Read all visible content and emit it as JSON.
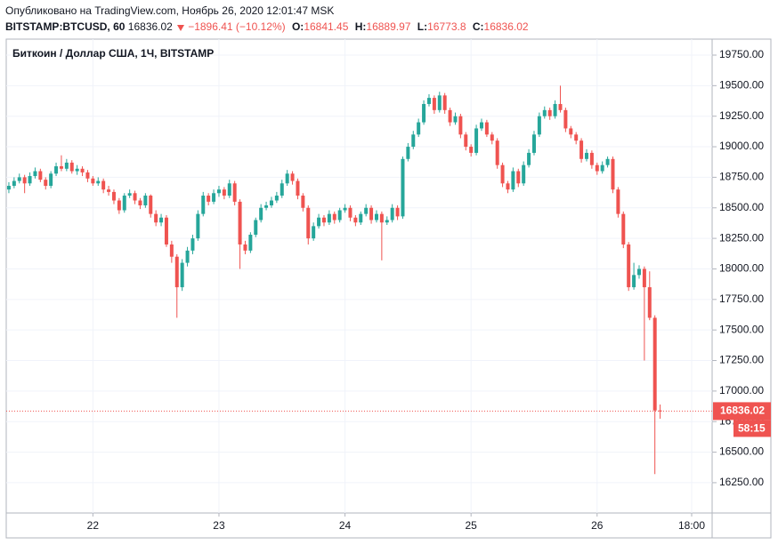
{
  "chart_data": {
    "type": "candlestick",
    "published": "Опубликовано на TradingView.com, Ноябрь 26, 2020 12:01:47 MSK",
    "symbol": "BITSTAMP:BTCUSD, 60",
    "change": "−1896.41 (−10.12%)",
    "ohlc_labels": [
      "O:",
      "H:",
      "L:",
      "C:"
    ],
    "title": "Биткоин / Доллар США, 1Ч, BITSTAMP",
    "countdown": "58:15",
    "up_color": "#26a69a",
    "down_color": "#ef5350",
    "grid": true,
    "xlim": [
      -0.5,
      133.9
    ],
    "xticks": [
      {
        "value": 16,
        "label": "22"
      },
      {
        "value": 40,
        "label": "23"
      },
      {
        "value": 64,
        "label": "24"
      },
      {
        "value": 88,
        "label": "25"
      },
      {
        "value": 112,
        "label": "26"
      },
      {
        "value": 130,
        "label": "18:00"
      }
    ],
    "ylim": [
      16002,
      19881
    ],
    "yticks": [
      {
        "value": 16250,
        "label": "16250.00"
      },
      {
        "value": 16500,
        "label": "16500.00"
      },
      {
        "value": 16750,
        "label": "16750.00"
      },
      {
        "value": 17000,
        "label": "17000.00"
      },
      {
        "value": 17250,
        "label": "17250.00"
      },
      {
        "value": 17500,
        "label": "17500.00"
      },
      {
        "value": 17750,
        "label": "17750.00"
      },
      {
        "value": 18000,
        "label": "18000.00"
      },
      {
        "value": 18250,
        "label": "18250.00"
      },
      {
        "value": 18500,
        "label": "18500.00"
      },
      {
        "value": 18750,
        "label": "18750.00"
      },
      {
        "value": 19000,
        "label": "19000.00"
      },
      {
        "value": 19250,
        "label": "19250.00"
      },
      {
        "value": 19500,
        "label": "19500.00"
      },
      {
        "value": 19750,
        "label": "19750.00"
      }
    ],
    "open": [
      18650,
      18680,
      18720,
      18750,
      18700,
      18760,
      18800,
      18730,
      18680,
      18780,
      18840,
      18820,
      18870,
      18800,
      18820,
      18790,
      18740,
      18700,
      18720,
      18650,
      18630,
      18560,
      18480,
      18600,
      18620,
      18560,
      18520,
      18600,
      18450,
      18380,
      18420,
      18200,
      18100,
      17850,
      18050,
      18150,
      18250,
      18450,
      18600,
      18550,
      18620,
      18650,
      18600,
      18700,
      18550,
      18200,
      18150,
      18280,
      18400,
      18500,
      18520,
      18560,
      18600,
      18700,
      18780,
      18720,
      18600,
      18500,
      18250,
      18350,
      18420,
      18380,
      18450,
      18400,
      18480,
      18500,
      18420,
      18380,
      18450,
      18500,
      18400,
      18450,
      18380,
      18400,
      18500,
      18430,
      18900,
      19000,
      19100,
      19200,
      19350,
      19400,
      19300,
      19420,
      19300,
      19200,
      19250,
      19100,
      19000,
      18950,
      19150,
      19200,
      19100,
      19050,
      18850,
      18700,
      18650,
      18800,
      18700,
      18850,
      18950,
      19100,
      19250,
      19300,
      19250,
      19350,
      19300,
      19150,
      19100,
      19050,
      18900,
      18950,
      18850,
      18800,
      18850,
      18900,
      18650,
      18450,
      18200,
      17850,
      17950,
      18000,
      17850,
      17600,
      16841.45
    ],
    "high": [
      18710,
      18750,
      18780,
      18770,
      18790,
      18830,
      18820,
      18750,
      18800,
      18870,
      18930,
      18900,
      18890,
      18850,
      18840,
      18810,
      18760,
      18750,
      18740,
      18680,
      18650,
      18580,
      18620,
      18650,
      18640,
      18580,
      18620,
      18610,
      18480,
      18450,
      18440,
      18230,
      18120,
      18080,
      18180,
      18280,
      18480,
      18630,
      18620,
      18650,
      18680,
      18670,
      18730,
      18720,
      18570,
      18230,
      18300,
      18420,
      18530,
      18550,
      18590,
      18630,
      18730,
      18810,
      18800,
      18740,
      18620,
      18520,
      18380,
      18450,
      18440,
      18480,
      18470,
      18500,
      18530,
      18520,
      18440,
      18470,
      18530,
      18520,
      18480,
      18470,
      18430,
      18530,
      18520,
      18920,
      19030,
      19130,
      19230,
      19380,
      19430,
      19420,
      19450,
      19440,
      19320,
      19280,
      19270,
      19120,
      19020,
      19180,
      19230,
      19220,
      19120,
      19070,
      18870,
      18720,
      18830,
      18820,
      18880,
      18980,
      19130,
      19280,
      19330,
      19320,
      19380,
      19500,
      19320,
      19170,
      19120,
      19070,
      18980,
      18970,
      18870,
      18880,
      18920,
      18920,
      18670,
      18470,
      18220,
      18050,
      18030,
      18020,
      17980,
      17620,
      16889.97
    ],
    "low": [
      18620,
      18660,
      18700,
      18620,
      18680,
      18740,
      18710,
      18650,
      18660,
      18760,
      18800,
      18800,
      18780,
      18770,
      18760,
      18710,
      18680,
      18680,
      18620,
      18600,
      18530,
      18450,
      18460,
      18580,
      18530,
      18490,
      18500,
      18420,
      18350,
      18350,
      18180,
      18050,
      17600,
      17820,
      18020,
      18120,
      18230,
      18430,
      18520,
      18530,
      18590,
      18570,
      18580,
      18520,
      18000,
      18120,
      18130,
      18260,
      18380,
      18480,
      18500,
      18540,
      18580,
      18680,
      18690,
      18570,
      18470,
      18200,
      18230,
      18330,
      18350,
      18360,
      18370,
      18380,
      18460,
      18390,
      18350,
      18360,
      18430,
      18370,
      18380,
      18070,
      18360,
      18380,
      18400,
      18410,
      18880,
      18980,
      19080,
      19180,
      19330,
      19270,
      19280,
      19270,
      19170,
      19180,
      19070,
      18970,
      18920,
      18930,
      19130,
      19080,
      19020,
      18820,
      18670,
      18620,
      18630,
      18670,
      18680,
      18830,
      18930,
      19080,
      19230,
      19220,
      19230,
      19280,
      19120,
      19070,
      19020,
      18870,
      18880,
      18820,
      18770,
      18780,
      18830,
      18620,
      18420,
      18170,
      17820,
      17830,
      17920,
      17250,
      17580,
      16320,
      16773.8
    ],
    "close": [
      18680,
      18720,
      18750,
      18700,
      18760,
      18800,
      18730,
      18680,
      18780,
      18840,
      18820,
      18870,
      18800,
      18820,
      18790,
      18740,
      18700,
      18720,
      18650,
      18630,
      18560,
      18480,
      18600,
      18620,
      18560,
      18520,
      18600,
      18450,
      18380,
      18420,
      18200,
      18100,
      17850,
      18050,
      18150,
      18250,
      18450,
      18600,
      18550,
      18620,
      18650,
      18600,
      18700,
      18550,
      18200,
      18150,
      18280,
      18400,
      18500,
      18520,
      18560,
      18600,
      18700,
      18780,
      18720,
      18600,
      18500,
      18250,
      18350,
      18420,
      18380,
      18450,
      18400,
      18480,
      18500,
      18420,
      18380,
      18450,
      18500,
      18400,
      18450,
      18380,
      18400,
      18500,
      18430,
      18900,
      19000,
      19100,
      19200,
      19350,
      19400,
      19300,
      19420,
      19300,
      19200,
      19250,
      19100,
      19000,
      18950,
      19150,
      19200,
      19100,
      19050,
      18850,
      18700,
      18650,
      18800,
      18700,
      18850,
      18950,
      19100,
      19250,
      19300,
      19250,
      19350,
      19300,
      19150,
      19100,
      19050,
      18900,
      18950,
      18850,
      18800,
      18850,
      18900,
      18650,
      18450,
      18200,
      17850,
      17950,
      18000,
      17850,
      17600,
      16841.45,
      16836.02
    ]
  }
}
